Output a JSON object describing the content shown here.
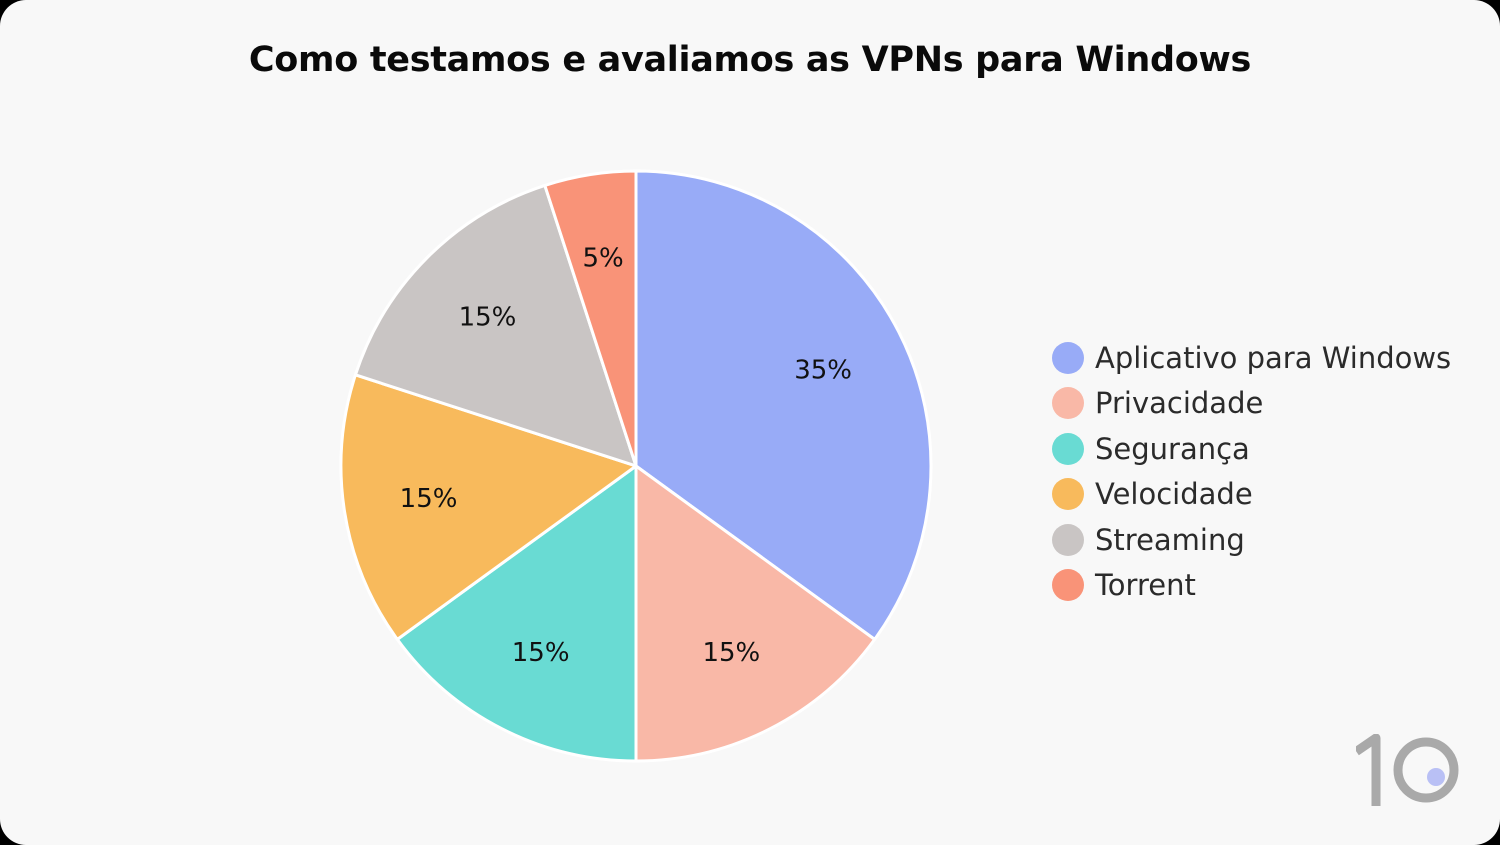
{
  "chart_data": {
    "type": "pie",
    "title": "Como testamos e avaliamos as VPNs para Windows",
    "categories": [
      "Aplicativo para Windows",
      "Privacidade",
      "Segurança",
      "Velocidade",
      "Streaming",
      "Torrent"
    ],
    "values": [
      35,
      15,
      15,
      15,
      15,
      5
    ],
    "labels": [
      "35%",
      "15%",
      "15%",
      "15%",
      "15%",
      "5%"
    ],
    "colors": [
      "#98abf7",
      "#f9b8a7",
      "#69dbd3",
      "#f8ba5c",
      "#c9c5c4",
      "#f99378"
    ],
    "legend_position": "right",
    "start_angle": "top",
    "direction": "clockwise"
  },
  "branding": {
    "logo_icon": "top10-logo-icon",
    "logo_color": "#a9a9a9",
    "logo_dot_color": "#b9c0f5"
  }
}
